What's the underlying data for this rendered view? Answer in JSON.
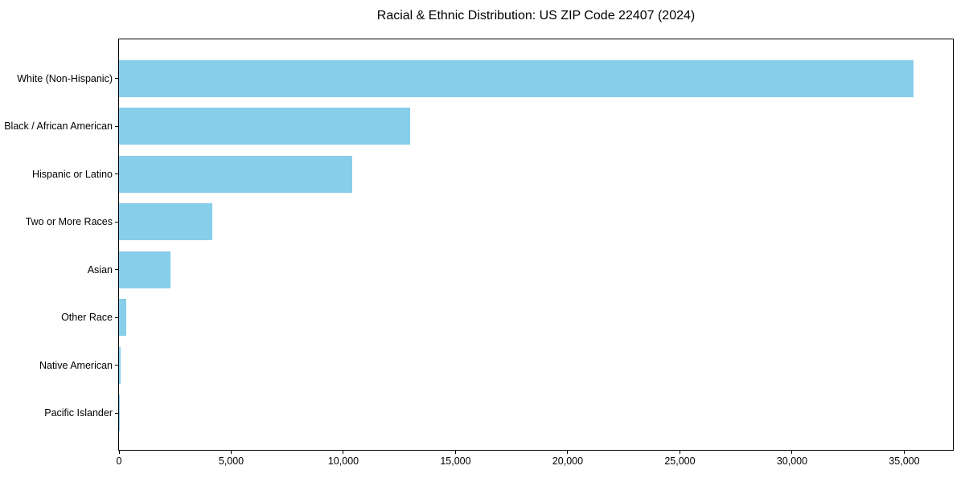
{
  "chart_data": {
    "type": "bar",
    "orientation": "horizontal",
    "title": "Racial & Ethnic Distribution: US ZIP Code 22407 (2024)",
    "categories": [
      "White (Non-Hispanic)",
      "Black / African American",
      "Hispanic or Latino",
      "Two or More Races",
      "Asian",
      "Other Race",
      "Native American",
      "Pacific Islander"
    ],
    "values": [
      35400,
      12970,
      10410,
      4150,
      2290,
      330,
      60,
      20
    ],
    "xlabel": "",
    "ylabel": "",
    "xlim": [
      0,
      37170
    ],
    "xticks": [
      0,
      5000,
      10000,
      15000,
      20000,
      25000,
      30000,
      35000
    ],
    "xtick_labels": [
      "0",
      "5,000",
      "10,000",
      "15,000",
      "20,000",
      "25,000",
      "30,000",
      "35,000"
    ],
    "bar_color": "#87CEEB",
    "spine_color": "#000000",
    "text_color": "#000000",
    "grid": false,
    "legend": null
  }
}
